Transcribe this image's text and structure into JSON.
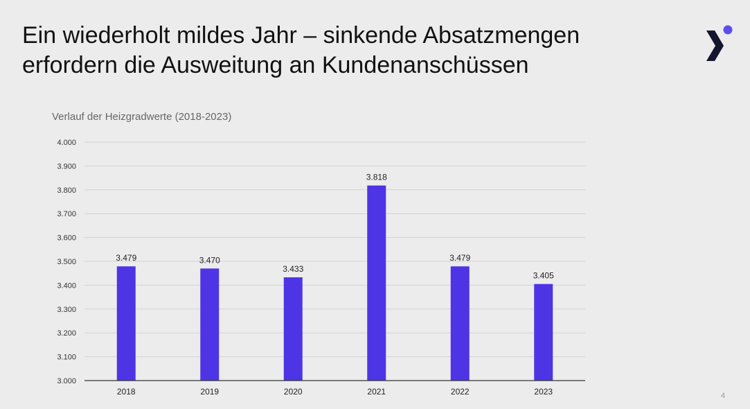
{
  "slide": {
    "title_line1": "Ein wiederholt mildes Jahr – sinkende Absatzmengen",
    "title_line2": "erfordern die Ausweitung an Kundenanschüssen",
    "page_number": "4",
    "logo": "brand-logo-chevron-dot"
  },
  "colors": {
    "bar": "#4d35e6",
    "logo_chevron": "#15152e",
    "logo_dot": "#5b4ee8",
    "grid": "#d2d2d2",
    "axis": "#333333"
  },
  "chart_data": {
    "type": "bar",
    "title": "Verlauf der Heizgradwerte (2018-2023)",
    "categories": [
      "2018",
      "2019",
      "2020",
      "2021",
      "2022",
      "2023"
    ],
    "values": [
      3479,
      3470,
      3433,
      3818,
      3479,
      3405
    ],
    "value_labels": [
      "3.479",
      "3.470",
      "3.433",
      "3.818",
      "3.479",
      "3.405"
    ],
    "ylim": [
      3000,
      4000
    ],
    "yticks": [
      3000,
      3100,
      3200,
      3300,
      3400,
      3500,
      3600,
      3700,
      3800,
      3900,
      4000
    ],
    "ytick_labels": [
      "3.000",
      "3.100",
      "3.200",
      "3.300",
      "3.400",
      "3.500",
      "3.600",
      "3.700",
      "3.800",
      "3.900",
      "4.000"
    ],
    "xlabel": "",
    "ylabel": "",
    "grid": true,
    "legend": "none"
  }
}
